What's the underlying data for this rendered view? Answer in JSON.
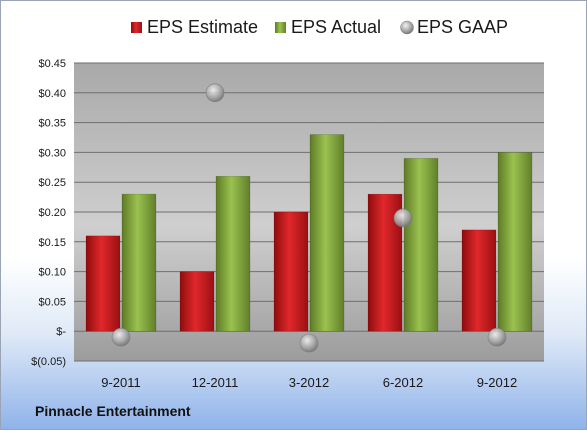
{
  "company": "Pinnacle Entertainment",
  "colors": {
    "estimate": "#c8191c",
    "actual": "#86a83e",
    "gaap": "#9a9a9a"
  },
  "chart_data": {
    "type": "bar",
    "categories": [
      "9-2011",
      "12-2011",
      "3-2012",
      "6-2012",
      "9-2012"
    ],
    "series": [
      {
        "name": "EPS Estimate",
        "kind": "bar",
        "values": [
          0.16,
          0.1,
          0.2,
          0.23,
          0.17
        ]
      },
      {
        "name": "EPS Actual",
        "kind": "bar",
        "values": [
          0.23,
          0.26,
          0.33,
          0.29,
          0.3
        ]
      },
      {
        "name": "EPS GAAP",
        "kind": "marker",
        "values": [
          -0.01,
          0.4,
          -0.02,
          0.19,
          -0.01
        ]
      }
    ],
    "ylim": [
      -0.05,
      0.45
    ],
    "ytick_values": [
      -0.05,
      0,
      0.05,
      0.1,
      0.15,
      0.2,
      0.25,
      0.3,
      0.35,
      0.4,
      0.45
    ],
    "ytick_labels": [
      "$(0.05)",
      "$-",
      "$0.05",
      "$0.10",
      "$0.15",
      "$0.20",
      "$0.25",
      "$0.30",
      "$0.35",
      "$0.40",
      "$0.45"
    ],
    "legend_position": "top",
    "grid": true
  }
}
